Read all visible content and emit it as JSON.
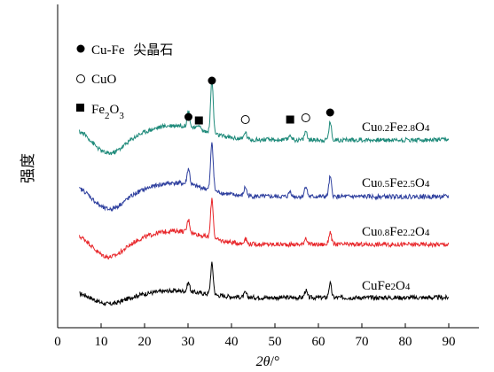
{
  "chart_data": {
    "type": "line",
    "xlabel": "2θ/°",
    "ylabel": "强度",
    "xlim": [
      0,
      90
    ],
    "xticks": [
      0,
      10,
      20,
      30,
      40,
      50,
      60,
      70,
      80,
      90
    ],
    "y_ticks_shown": false,
    "grid": false,
    "legend_position": "top-left",
    "legend": [
      {
        "marker": "filled-circle",
        "label": "Cu-Fe 尖晶石"
      },
      {
        "marker": "open-circle",
        "label": "CuO"
      },
      {
        "marker": "filled-square",
        "label": "Fe2O3"
      }
    ],
    "series": [
      {
        "name": "CuFe2O4",
        "color": "#000000",
        "x_range": [
          5,
          90
        ],
        "peaks_2theta": [
          30.1,
          35.5,
          43.2,
          57.1,
          62.7
        ]
      },
      {
        "name": "Cu0.8Fe2.2O4",
        "color": "#e8262a",
        "x_range": [
          5,
          90
        ],
        "peaks_2theta": [
          30.1,
          35.5,
          43.2,
          57.1,
          62.7
        ]
      },
      {
        "name": "Cu0.5Fe2.5O4",
        "color": "#2e3f9e",
        "x_range": [
          5,
          90
        ],
        "peaks_2theta": [
          30.1,
          35.5,
          43.2,
          53.5,
          57.1,
          62.7
        ]
      },
      {
        "name": "Cu0.2Fe2.8O4",
        "color": "#1e8a7a",
        "x_range": [
          5,
          90
        ],
        "peaks_2theta": [
          30.1,
          32.5,
          35.5,
          43.2,
          53.5,
          57.1,
          62.7
        ]
      }
    ],
    "peak_markers": [
      {
        "phase": "Cu-Fe spinel",
        "marker": "filled-circle",
        "x": 30.1
      },
      {
        "phase": "Fe2O3",
        "marker": "filled-square",
        "x": 32.5
      },
      {
        "phase": "Cu-Fe spinel",
        "marker": "filled-circle",
        "x": 35.5
      },
      {
        "phase": "CuO",
        "marker": "open-circle",
        "x": 43.2
      },
      {
        "phase": "Fe2O3",
        "marker": "filled-square",
        "x": 53.5
      },
      {
        "phase": "CuO",
        "marker": "open-circle",
        "x": 57.1
      },
      {
        "phase": "Cu-Fe spinel",
        "marker": "filled-circle",
        "x": 62.7
      }
    ]
  }
}
